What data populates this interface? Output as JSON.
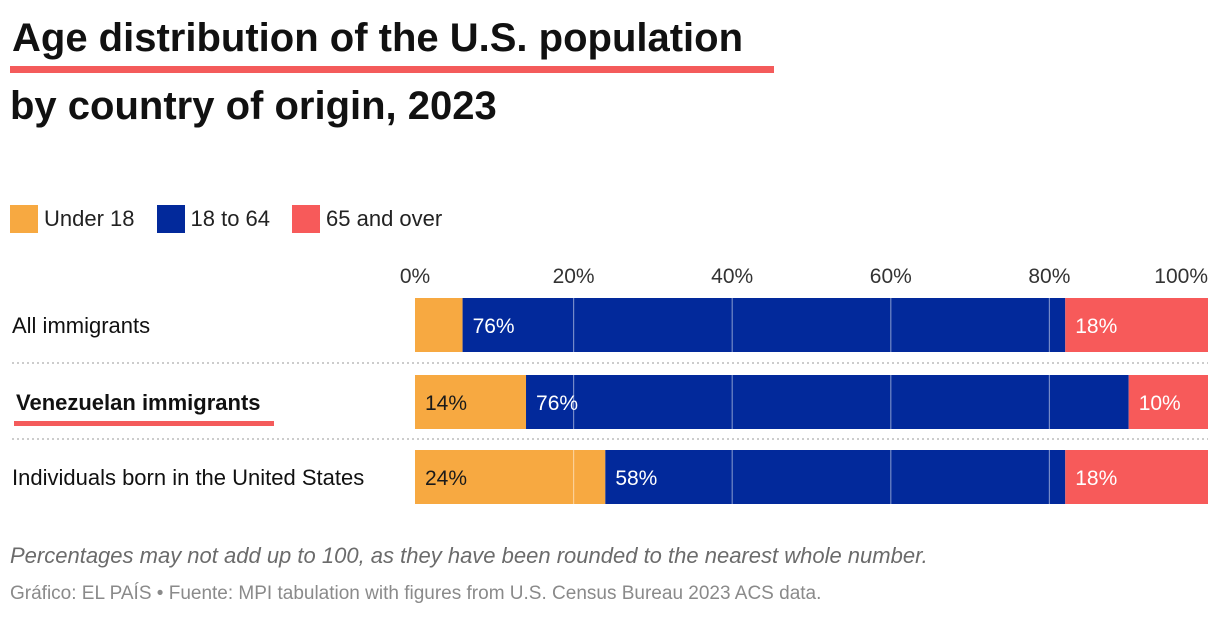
{
  "title": {
    "line1": "Age distribution of the U.S. population",
    "line2": "by country of origin, 2023"
  },
  "colors": {
    "under18": "#f7a941",
    "mid": "#02299b",
    "over65": "#f75a5a",
    "accent": "#f45b5b"
  },
  "legend": [
    {
      "label": "Under 18",
      "color": "#f7a941"
    },
    {
      "label": "18 to 64",
      "color": "#02299b"
    },
    {
      "label": "65 and over",
      "color": "#f75a5a"
    }
  ],
  "chart_data": {
    "type": "bar",
    "orientation": "horizontal",
    "stacked": true,
    "categories": [
      "All immigrants",
      "Venezuelan immigrants",
      "Individuals born in the United States"
    ],
    "highlighted_category": "Venezuelan immigrants",
    "series": [
      {
        "name": "Under 18",
        "values": [
          6,
          14,
          24
        ],
        "labels": [
          "",
          "14%",
          "24%"
        ]
      },
      {
        "name": "18 to 64",
        "values": [
          76,
          76,
          58
        ],
        "labels": [
          "76%",
          "76%",
          "58%"
        ]
      },
      {
        "name": "65 and over",
        "values": [
          18,
          10,
          18
        ],
        "labels": [
          "18%",
          "10%",
          "18%"
        ]
      }
    ],
    "xlim": [
      0,
      100
    ],
    "x_ticks": [
      0,
      20,
      40,
      60,
      80,
      100
    ],
    "x_tick_labels": [
      "0%",
      "20%",
      "40%",
      "60%",
      "80%",
      "100%"
    ],
    "title": "Age distribution of the U.S. population by country of origin, 2023"
  },
  "footer": {
    "note": "Percentages may not add up to 100, as they have been rounded to the nearest whole number.",
    "credit": "Gráfico: EL PAÍS • Fuente: MPI tabulation with figures from U.S. Census Bureau 2023 ACS data."
  }
}
